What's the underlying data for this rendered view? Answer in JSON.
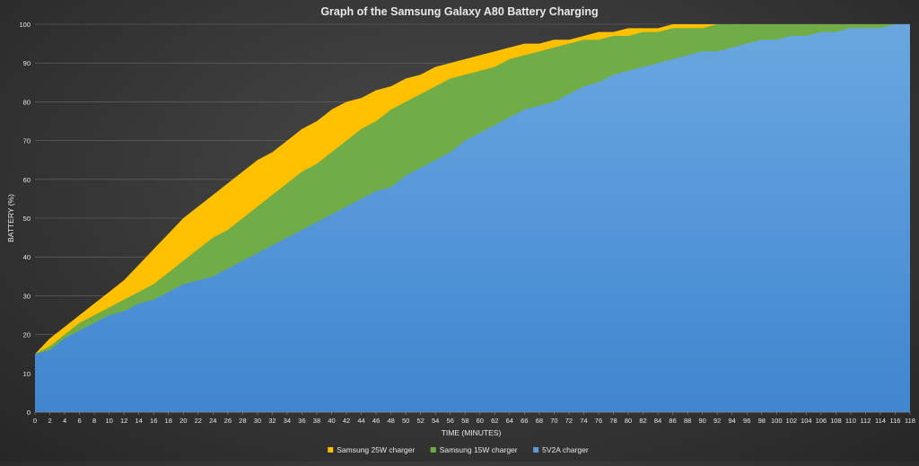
{
  "chart_data": {
    "type": "area",
    "title": "Graph of the Samsung Galaxy A80 Battery Charging",
    "xlabel": "TIME (MINUTES)",
    "ylabel": "BATTERY (%)",
    "xlim": [
      0,
      118
    ],
    "ylim": [
      0,
      100
    ],
    "x_ticks": [
      "0",
      "2",
      "4",
      "6",
      "8",
      "10",
      "12",
      "14",
      "16",
      "18",
      "20",
      "22",
      "24",
      "26",
      "28",
      "30",
      "32",
      "34",
      "36",
      "38",
      "40",
      "42",
      "44",
      "46",
      "48",
      "50",
      "52",
      "54",
      "56",
      "58",
      "60",
      "62",
      "64",
      "66",
      "68",
      "70",
      "72",
      "74",
      "76",
      "78",
      "80",
      "82",
      "84",
      "86",
      "88",
      "90",
      "92",
      "94",
      "96",
      "98",
      "100",
      "102",
      "104",
      "106",
      "108",
      "110",
      "112",
      "114",
      "116",
      "118"
    ],
    "y_ticks": [
      "0",
      "10",
      "20",
      "30",
      "40",
      "50",
      "60",
      "70",
      "80",
      "90",
      "100"
    ],
    "legend_position": "bottom",
    "series": [
      {
        "name": "Samsung 25W charger",
        "color": "#ffc000",
        "points": [
          [
            0,
            15
          ],
          [
            2,
            19
          ],
          [
            4,
            22
          ],
          [
            6,
            25
          ],
          [
            8,
            28
          ],
          [
            10,
            31
          ],
          [
            12,
            34
          ],
          [
            14,
            38
          ],
          [
            16,
            42
          ],
          [
            18,
            46
          ],
          [
            20,
            50
          ],
          [
            22,
            53
          ],
          [
            24,
            56
          ],
          [
            26,
            59
          ],
          [
            28,
            62
          ],
          [
            30,
            65
          ],
          [
            32,
            67
          ],
          [
            34,
            70
          ],
          [
            36,
            73
          ],
          [
            38,
            75
          ],
          [
            40,
            78
          ],
          [
            42,
            80
          ],
          [
            44,
            81
          ],
          [
            46,
            83
          ],
          [
            48,
            84
          ],
          [
            50,
            86
          ],
          [
            52,
            87
          ],
          [
            54,
            89
          ],
          [
            56,
            90
          ],
          [
            58,
            91
          ],
          [
            60,
            92
          ],
          [
            62,
            93
          ],
          [
            64,
            94
          ],
          [
            66,
            95
          ],
          [
            68,
            95
          ],
          [
            70,
            96
          ],
          [
            72,
            96
          ],
          [
            74,
            97
          ],
          [
            76,
            98
          ],
          [
            78,
            98
          ],
          [
            80,
            99
          ],
          [
            82,
            99
          ],
          [
            84,
            99
          ],
          [
            86,
            100
          ],
          [
            88,
            100
          ],
          [
            90,
            100
          ],
          [
            92,
            100
          ],
          [
            94,
            100
          ],
          [
            96,
            100
          ],
          [
            98,
            100
          ],
          [
            100,
            100
          ],
          [
            102,
            100
          ],
          [
            104,
            100
          ],
          [
            106,
            100
          ],
          [
            108,
            100
          ],
          [
            110,
            100
          ],
          [
            112,
            100
          ],
          [
            114,
            100
          ],
          [
            116,
            100
          ],
          [
            118,
            100
          ]
        ]
      },
      {
        "name": "Samsung 15W charger",
        "color": "#70ad47",
        "points": [
          [
            0,
            15
          ],
          [
            2,
            17
          ],
          [
            4,
            20
          ],
          [
            6,
            23
          ],
          [
            8,
            25
          ],
          [
            10,
            27
          ],
          [
            12,
            29
          ],
          [
            14,
            31
          ],
          [
            16,
            33
          ],
          [
            18,
            36
          ],
          [
            20,
            39
          ],
          [
            22,
            42
          ],
          [
            24,
            45
          ],
          [
            26,
            47
          ],
          [
            28,
            50
          ],
          [
            30,
            53
          ],
          [
            32,
            56
          ],
          [
            34,
            59
          ],
          [
            36,
            62
          ],
          [
            38,
            64
          ],
          [
            40,
            67
          ],
          [
            42,
            70
          ],
          [
            44,
            73
          ],
          [
            46,
            75
          ],
          [
            48,
            78
          ],
          [
            50,
            80
          ],
          [
            52,
            82
          ],
          [
            54,
            84
          ],
          [
            56,
            86
          ],
          [
            58,
            87
          ],
          [
            60,
            88
          ],
          [
            62,
            89
          ],
          [
            64,
            91
          ],
          [
            66,
            92
          ],
          [
            68,
            93
          ],
          [
            70,
            94
          ],
          [
            72,
            95
          ],
          [
            74,
            96
          ],
          [
            76,
            96
          ],
          [
            78,
            97
          ],
          [
            80,
            97
          ],
          [
            82,
            98
          ],
          [
            84,
            98
          ],
          [
            86,
            99
          ],
          [
            88,
            99
          ],
          [
            90,
            99
          ],
          [
            92,
            100
          ],
          [
            94,
            100
          ],
          [
            96,
            100
          ],
          [
            98,
            100
          ],
          [
            100,
            100
          ],
          [
            102,
            100
          ],
          [
            104,
            100
          ],
          [
            106,
            100
          ],
          [
            108,
            100
          ],
          [
            110,
            100
          ],
          [
            112,
            100
          ],
          [
            114,
            100
          ],
          [
            116,
            100
          ],
          [
            118,
            100
          ]
        ]
      },
      {
        "name": "5V2A charger",
        "color": "#5b9bd5",
        "points": [
          [
            0,
            15
          ],
          [
            2,
            16
          ],
          [
            4,
            19
          ],
          [
            6,
            21
          ],
          [
            8,
            23
          ],
          [
            10,
            25
          ],
          [
            12,
            26
          ],
          [
            14,
            28
          ],
          [
            16,
            29
          ],
          [
            18,
            31
          ],
          [
            20,
            33
          ],
          [
            22,
            34
          ],
          [
            24,
            35
          ],
          [
            26,
            37
          ],
          [
            28,
            39
          ],
          [
            30,
            41
          ],
          [
            32,
            43
          ],
          [
            34,
            45
          ],
          [
            36,
            47
          ],
          [
            38,
            49
          ],
          [
            40,
            51
          ],
          [
            42,
            53
          ],
          [
            44,
            55
          ],
          [
            46,
            57
          ],
          [
            48,
            58
          ],
          [
            50,
            61
          ],
          [
            52,
            63
          ],
          [
            54,
            65
          ],
          [
            56,
            67
          ],
          [
            58,
            70
          ],
          [
            60,
            72
          ],
          [
            62,
            74
          ],
          [
            64,
            76
          ],
          [
            66,
            78
          ],
          [
            68,
            79
          ],
          [
            70,
            80
          ],
          [
            72,
            82
          ],
          [
            74,
            84
          ],
          [
            76,
            85
          ],
          [
            78,
            87
          ],
          [
            80,
            88
          ],
          [
            82,
            89
          ],
          [
            84,
            90
          ],
          [
            86,
            91
          ],
          [
            88,
            92
          ],
          [
            90,
            93
          ],
          [
            92,
            93
          ],
          [
            94,
            94
          ],
          [
            96,
            95
          ],
          [
            98,
            96
          ],
          [
            100,
            96
          ],
          [
            102,
            97
          ],
          [
            104,
            97
          ],
          [
            106,
            98
          ],
          [
            108,
            98
          ],
          [
            110,
            99
          ],
          [
            112,
            99
          ],
          [
            114,
            99
          ],
          [
            116,
            100
          ],
          [
            118,
            100
          ]
        ]
      }
    ]
  }
}
